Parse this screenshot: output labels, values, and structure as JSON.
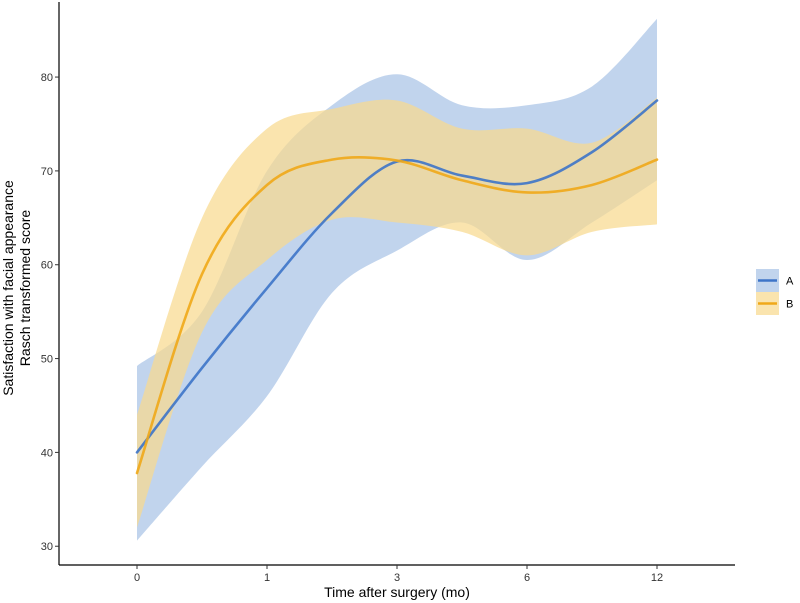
{
  "chart_data": {
    "type": "line",
    "xlabel": "Time after surgery (mo)",
    "ylabel": [
      "Satisfaction with facial appearance",
      "Rasch transformed score"
    ],
    "categories": [
      "0",
      "1",
      "3",
      "6",
      "12"
    ],
    "ylim": [
      28,
      88
    ],
    "xlim": [
      -0.6,
      4.6
    ],
    "y_ticks": [
      30,
      40,
      50,
      60,
      70,
      80
    ],
    "grid": false,
    "legend_position": "right",
    "series": [
      {
        "name": "A",
        "color": "#3d74c8",
        "band_color": "#a9c4e6",
        "curve": [
          [
            0,
            40
          ],
          [
            0.5,
            49
          ],
          [
            1,
            57.5
          ],
          [
            1.5,
            65.5
          ],
          [
            2,
            71
          ],
          [
            2.5,
            69.5
          ],
          [
            3,
            68.7
          ],
          [
            3.5,
            72
          ],
          [
            4,
            77.5
          ]
        ],
        "upper": [
          [
            0,
            49.2
          ],
          [
            0.5,
            55
          ],
          [
            1,
            70
          ],
          [
            1.5,
            77
          ],
          [
            2,
            80.3
          ],
          [
            2.5,
            77
          ],
          [
            3,
            77
          ],
          [
            3.5,
            79
          ],
          [
            4,
            86.2
          ]
        ],
        "lower": [
          [
            0,
            30.6
          ],
          [
            0.5,
            38.5
          ],
          [
            1,
            46
          ],
          [
            1.5,
            57
          ],
          [
            2,
            61.5
          ],
          [
            2.5,
            64.5
          ],
          [
            3,
            60.5
          ],
          [
            3.5,
            64.5
          ],
          [
            4,
            69
          ]
        ]
      },
      {
        "name": "B",
        "color": "#f0a818",
        "band_color": "#f8d98f",
        "curve": [
          [
            0,
            37.8
          ],
          [
            0.5,
            59
          ],
          [
            1,
            68.5
          ],
          [
            1.5,
            71.2
          ],
          [
            2,
            71.1
          ],
          [
            2.5,
            69
          ],
          [
            3,
            67.7
          ],
          [
            3.5,
            68.5
          ],
          [
            4,
            71.2
          ]
        ],
        "upper": [
          [
            0,
            44
          ],
          [
            0.5,
            65
          ],
          [
            1,
            74.5
          ],
          [
            1.5,
            76.6
          ],
          [
            2,
            77.5
          ],
          [
            2.5,
            74.5
          ],
          [
            3,
            74.5
          ],
          [
            3.5,
            73
          ],
          [
            4,
            77.8
          ]
        ],
        "lower": [
          [
            0,
            32
          ],
          [
            0.5,
            52.8
          ],
          [
            1,
            60.5
          ],
          [
            1.5,
            64.8
          ],
          [
            2,
            64.5
          ],
          [
            2.5,
            63.5
          ],
          [
            3,
            61
          ],
          [
            3.5,
            63.5
          ],
          [
            4,
            64.3
          ]
        ]
      }
    ]
  }
}
